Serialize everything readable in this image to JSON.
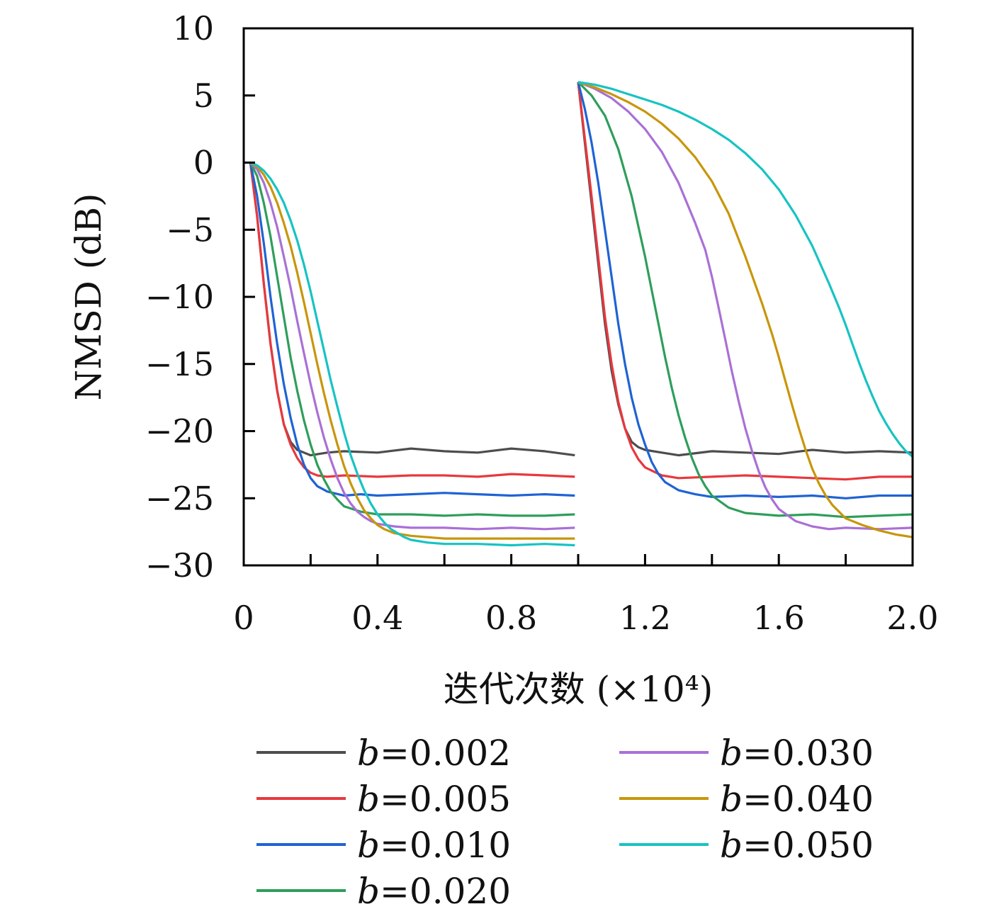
{
  "chart_data": {
    "type": "line",
    "title": "",
    "xlabel": "迭代次数 (×10⁴)",
    "ylabel": "NMSD (dB)",
    "xlim": [
      0,
      2.0
    ],
    "ylim": [
      -30,
      10
    ],
    "xticks": [
      0,
      0.4,
      0.8,
      1.2,
      1.6,
      2.0
    ],
    "xtick_labels": [
      "0",
      "0.4",
      "0.8",
      "1.2",
      "1.6",
      "2.0"
    ],
    "yticks": [
      10,
      5,
      0,
      -5,
      -10,
      -15,
      -20,
      -25,
      -30
    ],
    "ytick_labels": [
      "10",
      "5",
      "0",
      "−5",
      "−10",
      "−15",
      "−20",
      "−25",
      "−30"
    ],
    "grid": false,
    "legend_position": "below",
    "series": [
      {
        "name": "b=0.002",
        "color": "#4d4d4d",
        "segments": [
          {
            "x": [
              0.02,
              0.04,
              0.06,
              0.08,
              0.1,
              0.12,
              0.14,
              0.16,
              0.18,
              0.2,
              0.25,
              0.3,
              0.4,
              0.5,
              0.6,
              0.7,
              0.8,
              0.9,
              0.99
            ],
            "y": [
              0,
              -4,
              -9,
              -13.5,
              -17,
              -19.5,
              -20.8,
              -21.4,
              -21.6,
              -21.8,
              -21.6,
              -21.5,
              -21.6,
              -21.3,
              -21.5,
              -21.6,
              -21.3,
              -21.5,
              -21.8
            ]
          },
          {
            "x": [
              1.0,
              1.02,
              1.04,
              1.06,
              1.08,
              1.1,
              1.12,
              1.14,
              1.16,
              1.18,
              1.2,
              1.25,
              1.3,
              1.4,
              1.5,
              1.6,
              1.7,
              1.8,
              1.9,
              2.0
            ],
            "y": [
              6,
              1.5,
              -3,
              -7.5,
              -12,
              -15.5,
              -18,
              -19.8,
              -20.8,
              -21.2,
              -21.4,
              -21.6,
              -21.8,
              -21.5,
              -21.6,
              -21.7,
              -21.4,
              -21.6,
              -21.5,
              -21.6
            ]
          }
        ]
      },
      {
        "name": "b=0.005",
        "color": "#e8383d",
        "segments": [
          {
            "x": [
              0.02,
              0.04,
              0.06,
              0.08,
              0.1,
              0.12,
              0.14,
              0.16,
              0.18,
              0.2,
              0.22,
              0.25,
              0.3,
              0.4,
              0.5,
              0.6,
              0.7,
              0.8,
              0.9,
              0.99
            ],
            "y": [
              0,
              -4,
              -9,
              -13.5,
              -17,
              -19.5,
              -21,
              -22,
              -22.7,
              -23.1,
              -23.3,
              -23.4,
              -23.3,
              -23.4,
              -23.3,
              -23.3,
              -23.4,
              -23.2,
              -23.3,
              -23.4
            ]
          },
          {
            "x": [
              1.0,
              1.02,
              1.04,
              1.06,
              1.08,
              1.1,
              1.12,
              1.14,
              1.16,
              1.18,
              1.2,
              1.25,
              1.3,
              1.4,
              1.5,
              1.6,
              1.7,
              1.8,
              1.9,
              2.0
            ],
            "y": [
              6,
              1.8,
              -2.5,
              -7,
              -11.5,
              -15,
              -17.8,
              -19.8,
              -21.2,
              -22.1,
              -22.7,
              -23.3,
              -23.5,
              -23.4,
              -23.3,
              -23.4,
              -23.5,
              -23.6,
              -23.4,
              -23.4
            ]
          }
        ]
      },
      {
        "name": "b=0.010",
        "color": "#1f63d4",
        "segments": [
          {
            "x": [
              0.02,
              0.04,
              0.06,
              0.08,
              0.1,
              0.12,
              0.14,
              0.16,
              0.18,
              0.2,
              0.22,
              0.25,
              0.3,
              0.35,
              0.4,
              0.5,
              0.6,
              0.7,
              0.8,
              0.9,
              0.99
            ],
            "y": [
              0,
              -2.5,
              -6,
              -10,
              -13.5,
              -16.5,
              -19,
              -21,
              -22.5,
              -23.5,
              -24.1,
              -24.5,
              -24.8,
              -24.7,
              -24.8,
              -24.7,
              -24.6,
              -24.7,
              -24.8,
              -24.7,
              -24.8
            ]
          },
          {
            "x": [
              1.0,
              1.02,
              1.04,
              1.06,
              1.08,
              1.1,
              1.12,
              1.14,
              1.16,
              1.18,
              1.2,
              1.22,
              1.24,
              1.26,
              1.3,
              1.35,
              1.4,
              1.5,
              1.6,
              1.7,
              1.8,
              1.9,
              2.0
            ],
            "y": [
              6,
              4,
              1.5,
              -1.5,
              -5,
              -8.5,
              -12,
              -15,
              -17.5,
              -19.5,
              -21,
              -22.3,
              -23.2,
              -23.8,
              -24.4,
              -24.7,
              -24.9,
              -24.8,
              -24.9,
              -24.8,
              -25,
              -24.8,
              -24.8
            ]
          }
        ]
      },
      {
        "name": "b=0.020",
        "color": "#2e9e5b",
        "segments": [
          {
            "x": [
              0.02,
              0.04,
              0.06,
              0.08,
              0.1,
              0.12,
              0.14,
              0.16,
              0.18,
              0.2,
              0.22,
              0.24,
              0.26,
              0.28,
              0.3,
              0.35,
              0.4,
              0.5,
              0.6,
              0.7,
              0.8,
              0.9,
              0.99
            ],
            "y": [
              0,
              -1,
              -3,
              -5.5,
              -8.5,
              -11.5,
              -14.5,
              -17,
              -19.2,
              -21,
              -22.5,
              -23.6,
              -24.5,
              -25.1,
              -25.6,
              -26,
              -26.2,
              -26.2,
              -26.3,
              -26.2,
              -26.3,
              -26.3,
              -26.2
            ]
          },
          {
            "x": [
              1.0,
              1.04,
              1.08,
              1.12,
              1.16,
              1.2,
              1.22,
              1.24,
              1.26,
              1.28,
              1.3,
              1.32,
              1.34,
              1.36,
              1.38,
              1.4,
              1.45,
              1.5,
              1.6,
              1.7,
              1.8,
              1.9,
              2.0
            ],
            "y": [
              6,
              5,
              3.5,
              1,
              -2.5,
              -7,
              -9.5,
              -12,
              -14.5,
              -16.8,
              -18.8,
              -20.5,
              -22,
              -23.2,
              -24.1,
              -24.8,
              -25.7,
              -26.1,
              -26.3,
              -26.2,
              -26.4,
              -26.3,
              -26.2
            ]
          }
        ]
      },
      {
        "name": "b=0.030",
        "color": "#a970d6",
        "segments": [
          {
            "x": [
              0.02,
              0.04,
              0.06,
              0.08,
              0.1,
              0.12,
              0.14,
              0.16,
              0.18,
              0.2,
              0.22,
              0.24,
              0.26,
              0.28,
              0.3,
              0.32,
              0.34,
              0.36,
              0.38,
              0.4,
              0.45,
              0.5,
              0.6,
              0.7,
              0.8,
              0.9,
              0.99
            ],
            "y": [
              0,
              -0.5,
              -1.5,
              -3,
              -4.8,
              -7,
              -9.3,
              -11.8,
              -14.2,
              -16.5,
              -18.6,
              -20.5,
              -22.1,
              -23.5,
              -24.6,
              -25.4,
              -26,
              -26.4,
              -26.7,
              -26.9,
              -27.1,
              -27.2,
              -27.2,
              -27.3,
              -27.2,
              -27.3,
              -27.2
            ]
          },
          {
            "x": [
              1.0,
              1.05,
              1.1,
              1.15,
              1.2,
              1.25,
              1.3,
              1.35,
              1.38,
              1.4,
              1.42,
              1.44,
              1.46,
              1.48,
              1.5,
              1.52,
              1.54,
              1.56,
              1.58,
              1.6,
              1.65,
              1.7,
              1.75,
              1.8,
              1.9,
              2.0
            ],
            "y": [
              6,
              5.5,
              4.8,
              3.8,
              2.5,
              0.8,
              -1.5,
              -4.5,
              -6.5,
              -8.5,
              -10.8,
              -13.2,
              -15.6,
              -17.8,
              -19.8,
              -21.5,
              -23,
              -24.2,
              -25.1,
              -25.8,
              -26.7,
              -27.1,
              -27.3,
              -27.2,
              -27.3,
              -27.2
            ]
          }
        ]
      },
      {
        "name": "b=0.040",
        "color": "#c8960a",
        "segments": [
          {
            "x": [
              0.02,
              0.04,
              0.06,
              0.08,
              0.1,
              0.12,
              0.14,
              0.16,
              0.18,
              0.2,
              0.22,
              0.24,
              0.26,
              0.28,
              0.3,
              0.32,
              0.34,
              0.36,
              0.38,
              0.4,
              0.42,
              0.45,
              0.5,
              0.55,
              0.6,
              0.7,
              0.8,
              0.9,
              0.99
            ],
            "y": [
              0,
              -0.3,
              -0.9,
              -1.8,
              -3,
              -4.5,
              -6.2,
              -8.2,
              -10.4,
              -12.7,
              -15,
              -17.2,
              -19.2,
              -21,
              -22.6,
              -23.9,
              -25,
              -25.9,
              -26.5,
              -27,
              -27.3,
              -27.6,
              -27.8,
              -27.9,
              -28,
              -28,
              -28,
              -28,
              -28
            ]
          },
          {
            "x": [
              1.0,
              1.05,
              1.1,
              1.15,
              1.2,
              1.25,
              1.3,
              1.35,
              1.4,
              1.45,
              1.5,
              1.55,
              1.58,
              1.6,
              1.62,
              1.64,
              1.66,
              1.68,
              1.7,
              1.72,
              1.74,
              1.76,
              1.78,
              1.8,
              1.85,
              1.9,
              1.95,
              2.0
            ],
            "y": [
              6,
              5.6,
              5.1,
              4.5,
              3.8,
              2.9,
              1.8,
              0.4,
              -1.4,
              -3.8,
              -7,
              -10.5,
              -12.8,
              -14.5,
              -16.3,
              -18.1,
              -19.8,
              -21.4,
              -22.8,
              -23.9,
              -24.8,
              -25.5,
              -26,
              -26.5,
              -27,
              -27.4,
              -27.7,
              -27.9
            ]
          }
        ]
      },
      {
        "name": "b=0.050",
        "color": "#17c3c3",
        "segments": [
          {
            "x": [
              0.02,
              0.04,
              0.06,
              0.08,
              0.1,
              0.12,
              0.14,
              0.16,
              0.18,
              0.2,
              0.22,
              0.24,
              0.26,
              0.28,
              0.3,
              0.32,
              0.34,
              0.36,
              0.38,
              0.4,
              0.42,
              0.44,
              0.46,
              0.48,
              0.5,
              0.55,
              0.6,
              0.7,
              0.8,
              0.9,
              0.99
            ],
            "y": [
              0,
              -0.2,
              -0.6,
              -1.2,
              -2,
              -3,
              -4.3,
              -5.8,
              -7.6,
              -9.6,
              -11.8,
              -14,
              -16.2,
              -18.2,
              -20.1,
              -21.8,
              -23.2,
              -24.4,
              -25.4,
              -26.2,
              -26.8,
              -27.3,
              -27.6,
              -27.9,
              -28.1,
              -28.3,
              -28.4,
              -28.4,
              -28.5,
              -28.4,
              -28.5
            ]
          },
          {
            "x": [
              1.0,
              1.05,
              1.1,
              1.15,
              1.2,
              1.25,
              1.3,
              1.35,
              1.4,
              1.45,
              1.5,
              1.55,
              1.6,
              1.65,
              1.7,
              1.75,
              1.78,
              1.8,
              1.82,
              1.84,
              1.86,
              1.88,
              1.9,
              1.92,
              1.94,
              1.96,
              1.98,
              2.0
            ],
            "y": [
              6,
              5.8,
              5.5,
              5.1,
              4.7,
              4.3,
              3.8,
              3.2,
              2.5,
              1.7,
              0.7,
              -0.5,
              -2,
              -3.9,
              -6.2,
              -9,
              -10.8,
              -12.1,
              -13.5,
              -14.9,
              -16.2,
              -17.4,
              -18.5,
              -19.4,
              -20.2,
              -20.9,
              -21.5,
              -21.9
            ]
          }
        ]
      }
    ]
  }
}
